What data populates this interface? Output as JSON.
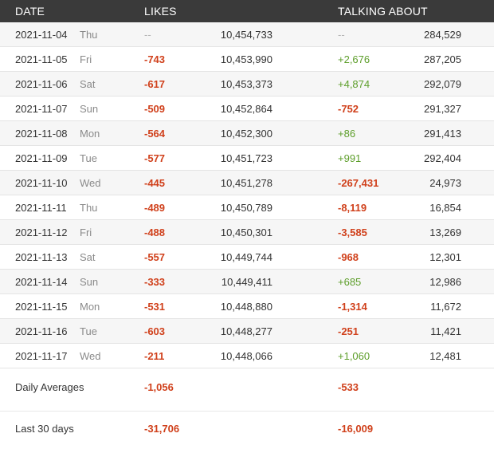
{
  "header": {
    "date": "DATE",
    "likes": "LIKES",
    "talking_about": "TALKING ABOUT"
  },
  "rows": [
    {
      "date": "2021-11-04",
      "day": "Thu",
      "likes_change": "--",
      "likes": "10,454,733",
      "talking_change": "--",
      "talking": "284,529"
    },
    {
      "date": "2021-11-05",
      "day": "Fri",
      "likes_change": "-743",
      "likes": "10,453,990",
      "talking_change": "+2,676",
      "talking": "287,205"
    },
    {
      "date": "2021-11-06",
      "day": "Sat",
      "likes_change": "-617",
      "likes": "10,453,373",
      "talking_change": "+4,874",
      "talking": "292,079"
    },
    {
      "date": "2021-11-07",
      "day": "Sun",
      "likes_change": "-509",
      "likes": "10,452,864",
      "talking_change": "-752",
      "talking": "291,327"
    },
    {
      "date": "2021-11-08",
      "day": "Mon",
      "likes_change": "-564",
      "likes": "10,452,300",
      "talking_change": "+86",
      "talking": "291,413"
    },
    {
      "date": "2021-11-09",
      "day": "Tue",
      "likes_change": "-577",
      "likes": "10,451,723",
      "talking_change": "+991",
      "talking": "292,404"
    },
    {
      "date": "2021-11-10",
      "day": "Wed",
      "likes_change": "-445",
      "likes": "10,451,278",
      "talking_change": "-267,431",
      "talking": "24,973"
    },
    {
      "date": "2021-11-11",
      "day": "Thu",
      "likes_change": "-489",
      "likes": "10,450,789",
      "talking_change": "-8,119",
      "talking": "16,854"
    },
    {
      "date": "2021-11-12",
      "day": "Fri",
      "likes_change": "-488",
      "likes": "10,450,301",
      "talking_change": "-3,585",
      "talking": "13,269"
    },
    {
      "date": "2021-11-13",
      "day": "Sat",
      "likes_change": "-557",
      "likes": "10,449,744",
      "talking_change": "-968",
      "talking": "12,301"
    },
    {
      "date": "2021-11-14",
      "day": "Sun",
      "likes_change": "-333",
      "likes": "10,449,411",
      "talking_change": "+685",
      "talking": "12,986"
    },
    {
      "date": "2021-11-15",
      "day": "Mon",
      "likes_change": "-531",
      "likes": "10,448,880",
      "talking_change": "-1,314",
      "talking": "11,672"
    },
    {
      "date": "2021-11-16",
      "day": "Tue",
      "likes_change": "-603",
      "likes": "10,448,277",
      "talking_change": "-251",
      "talking": "11,421"
    },
    {
      "date": "2021-11-17",
      "day": "Wed",
      "likes_change": "-211",
      "likes": "10,448,066",
      "talking_change": "+1,060",
      "talking": "12,481"
    }
  ],
  "summary": {
    "daily_averages": {
      "label": "Daily Averages",
      "likes_change": "-1,056",
      "talking_change": "-533"
    },
    "last_30_days": {
      "label": "Last 30 days",
      "likes_change": "-31,706",
      "talking_change": "-16,009"
    }
  },
  "colors": {
    "header_bg": "#3a3a3a",
    "negative": "#d0401b",
    "positive": "#5d9e2a",
    "row_alt": "#f6f6f6"
  }
}
